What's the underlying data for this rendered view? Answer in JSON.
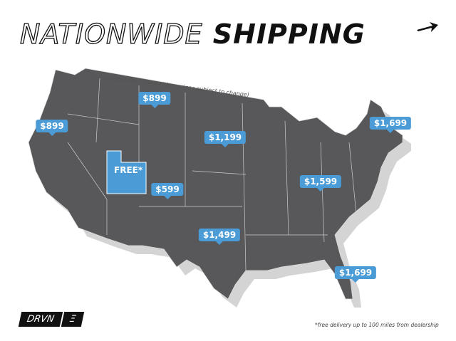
{
  "title": {
    "outline": "NATIONWIDE",
    "bold": "SHIPPING"
  },
  "note": "(prices based on major cities, prices subject to change)",
  "colors": {
    "map": "#58585a",
    "shadow": "#d4d4d4",
    "bubble": "#4a9bd6"
  },
  "prices": [
    {
      "region": "pacific-northwest",
      "label": "$899"
    },
    {
      "region": "montana",
      "label": "$899"
    },
    {
      "region": "utah",
      "label": "FREE*"
    },
    {
      "region": "colorado",
      "label": "$599"
    },
    {
      "region": "nebraska",
      "label": "$1,199"
    },
    {
      "region": "oklahoma",
      "label": "$1,499"
    },
    {
      "region": "ohio",
      "label": "$1,599"
    },
    {
      "region": "new-england",
      "label": "$1,699"
    },
    {
      "region": "florida",
      "label": "$1,699"
    }
  ],
  "logo": {
    "text": "DRVN",
    "mark": "Ξ"
  },
  "footnote": "*free delivery up to 100 miles from dealership"
}
